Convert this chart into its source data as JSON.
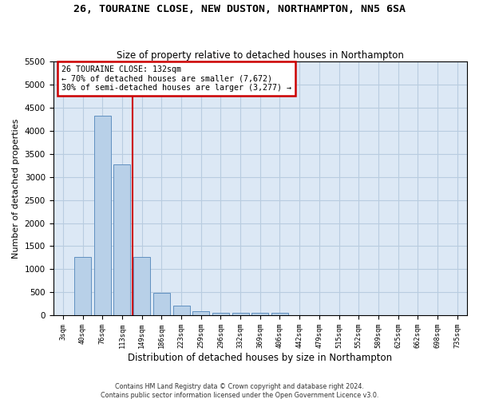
{
  "title1": "26, TOURAINE CLOSE, NEW DUSTON, NORTHAMPTON, NN5 6SA",
  "title2": "Size of property relative to detached houses in Northampton",
  "xlabel": "Distribution of detached houses by size in Northampton",
  "ylabel": "Number of detached properties",
  "bar_labels": [
    "3sqm",
    "40sqm",
    "76sqm",
    "113sqm",
    "149sqm",
    "186sqm",
    "223sqm",
    "259sqm",
    "296sqm",
    "332sqm",
    "369sqm",
    "406sqm",
    "442sqm",
    "479sqm",
    "515sqm",
    "552sqm",
    "589sqm",
    "625sqm",
    "662sqm",
    "698sqm",
    "735sqm"
  ],
  "bar_values": [
    0,
    1270,
    4330,
    3270,
    1270,
    490,
    215,
    95,
    60,
    55,
    55,
    55,
    0,
    0,
    0,
    0,
    0,
    0,
    0,
    0,
    0
  ],
  "bar_color": "#b8d0e8",
  "bar_edge_color": "#6090c0",
  "red_line_x": 3.53,
  "annotation_title": "26 TOURAINE CLOSE: 132sqm",
  "annotation_line1": "← 70% of detached houses are smaller (7,672)",
  "annotation_line2": "30% of semi-detached houses are larger (3,277) →",
  "annotation_box_color": "#ffffff",
  "annotation_box_edge": "#cc0000",
  "ylim": [
    0,
    5500
  ],
  "yticks": [
    0,
    500,
    1000,
    1500,
    2000,
    2500,
    3000,
    3500,
    4000,
    4500,
    5000,
    5500
  ],
  "grid_color": "#b8cce0",
  "background_color": "#dce8f5",
  "fig_background": "#ffffff",
  "footer1": "Contains HM Land Registry data © Crown copyright and database right 2024.",
  "footer2": "Contains public sector information licensed under the Open Government Licence v3.0."
}
